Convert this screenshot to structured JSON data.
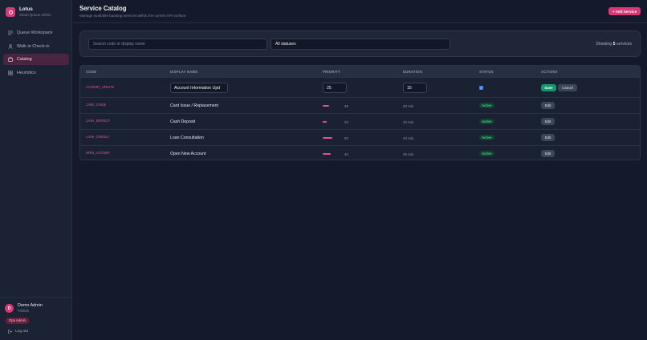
{
  "app": {
    "name": "Lotus",
    "subtitle": "Smart Queue Admin"
  },
  "sidebar": {
    "items": [
      {
        "label": "Queue Workspace",
        "icon": "list-icon",
        "active": false
      },
      {
        "label": "Walk-in Check-in",
        "icon": "person-icon",
        "active": false
      },
      {
        "label": "Catalog",
        "icon": "folder-icon",
        "active": true
      },
      {
        "label": "Heuristics",
        "icon": "grid-icon",
        "active": false
      }
    ]
  },
  "user": {
    "initial": "D",
    "name": "Demo Admin",
    "id": "#30023",
    "role": "Ops Admin",
    "logout_label": "Log out"
  },
  "header": {
    "title": "Service Catalog",
    "subtitle": "Manage available banking services within the current API surface",
    "add_label": "+ Add Service"
  },
  "filters": {
    "search_placeholder": "Search code or display name",
    "status_value": "All statuses",
    "showing_prefix": "Showing",
    "showing_count": "5",
    "showing_suffix": "services"
  },
  "table": {
    "columns": [
      "CODE",
      "DISPLAY NAME",
      "PRIORITY",
      "DURATION",
      "STATUS",
      "ACTIONS"
    ],
    "editing_row": {
      "code": "ACCOUNT_UPDATE",
      "display_name": "Account Information Upd",
      "priority": "25",
      "duration": "15",
      "active_checked": true,
      "save_label": "Save",
      "cancel_label": "Cancel"
    },
    "rows": [
      {
        "code": "CARD_ISSUE",
        "display_name": "Card Issue / Replacement",
        "priority": 35,
        "priority_text": "35",
        "duration": "20 min",
        "status": "Active",
        "action": "Edit"
      },
      {
        "code": "CASH_DEPOSIT",
        "display_name": "Cash Deposit",
        "priority": 20,
        "priority_text": "20",
        "duration": "10 min",
        "status": "Active",
        "action": "Edit"
      },
      {
        "code": "LOAN_CONSULT",
        "display_name": "Loan Consultation",
        "priority": 50,
        "priority_text": "50",
        "duration": "40 min",
        "status": "Active",
        "action": "Edit"
      },
      {
        "code": "OPEN_ACCOUNT",
        "display_name": "Open New Account",
        "priority": 40,
        "priority_text": "40",
        "duration": "25 min",
        "status": "Active",
        "action": "Edit"
      }
    ]
  },
  "colors": {
    "accent": "#d63a74",
    "active_bg": "#123e33",
    "active_text": "#3dd68c",
    "save": "#10996a"
  }
}
